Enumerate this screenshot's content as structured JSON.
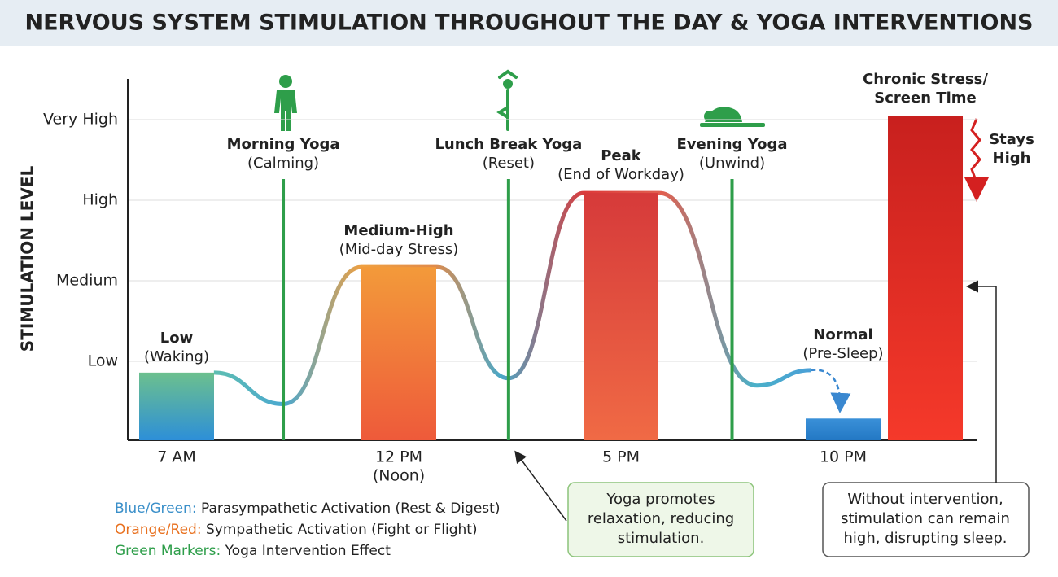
{
  "chart_data": {
    "type": "bar",
    "title": "NERVOUS SYSTEM STIMULATION THROUGHOUT THE DAY & YOGA INTERVENTIONS",
    "y_label": "STIMULATION LEVEL",
    "ylim": [
      0,
      4.5
    ],
    "yticks": [
      {
        "value": 1,
        "label": "Low"
      },
      {
        "value": 2,
        "label": "Medium"
      },
      {
        "value": 3,
        "label": "High"
      },
      {
        "value": 4,
        "label": "Very High"
      }
    ],
    "grid": true,
    "xlim": [
      5.9,
      25
    ],
    "xticks": [
      {
        "value": 7,
        "label": "7 AM"
      },
      {
        "value": 12,
        "label": "12 PM"
      },
      {
        "value": 17,
        "label": "5 PM"
      },
      {
        "value": 22,
        "label": "10 PM"
      }
    ],
    "xtick_note": "(Noon)",
    "bars": [
      {
        "label": [
          "Low"
        ],
        "sublabel": "(Waking)",
        "x": 7,
        "value": 0.86,
        "colors": [
          "#6cc08e",
          "#2d8fd8"
        ]
      },
      {
        "label": [
          "Medium-High"
        ],
        "sublabel": "(Mid-day Stress)",
        "x": 12,
        "value": 2.17,
        "colors": [
          "#f39a3a",
          "#ee5a3a"
        ]
      },
      {
        "label": [
          "Peak"
        ],
        "sublabel": "(End of Workday)",
        "x": 17,
        "value": 3.09,
        "colors": [
          "#d63a3a",
          "#f06a45"
        ]
      },
      {
        "label": [
          "Normal"
        ],
        "sublabel": "(Pre-Sleep)",
        "x": 22,
        "value": 0.29,
        "colors": [
          "#3a90d8",
          "#2378c4"
        ]
      },
      {
        "label": [
          "Chronic Stress/",
          "Screen Time"
        ],
        "sublabel": null,
        "x": 23.85,
        "value": 4.05,
        "colors": [
          "#c8201e",
          "#f5392a"
        ]
      }
    ],
    "curve": {
      "x": [
        7.84,
        9.4,
        11.16,
        12.86,
        14.47,
        16.16,
        17.86,
        20.06,
        21.27
      ],
      "values": [
        0.86,
        0.47,
        2.17,
        2.17,
        0.79,
        3.09,
        3.09,
        0.7,
        0.89
      ]
    },
    "markers": [
      {
        "x": 9.4,
        "label": "Morning Yoga",
        "sublabel": "(Calming)"
      },
      {
        "x": 14.47,
        "label": "Lunch Break Yoga",
        "sublabel": "(Reset)"
      },
      {
        "x": 19.5,
        "label": "Evening Yoga",
        "sublabel": "(Unwind)"
      }
    ],
    "stays_high": [
      "Stays",
      "High"
    ],
    "callouts": [
      [
        "Yoga promotes",
        "relaxation, reducing",
        "stimulation."
      ],
      [
        "Without intervention,",
        "stimulation can remain",
        "high, disrupting sleep."
      ]
    ],
    "legend": [
      {
        "key": "Blue/Green:",
        "text": " Parasympathetic Activation (Rest & Digest)",
        "color": "#3a8fc9"
      },
      {
        "key": "Orange/Red:",
        "text": " Sympathetic Activation (Fight or Flight)",
        "color": "#e8701e"
      },
      {
        "key": "Green Markers:",
        "text": " Yoga Intervention Effect",
        "color": "#2e9e4a"
      }
    ]
  }
}
